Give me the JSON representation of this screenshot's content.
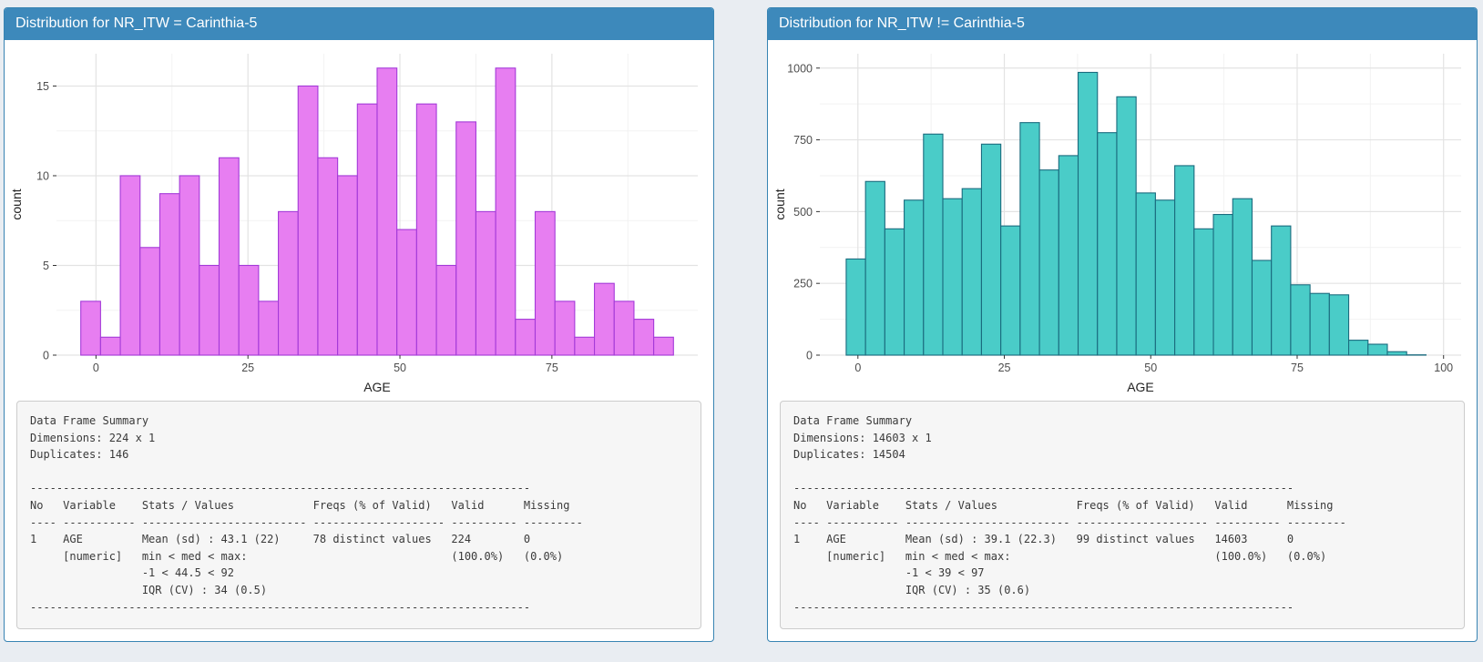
{
  "colors": {
    "page_bg": "#e9edf2",
    "panel_border": "#3884b3",
    "header_bg": "#3d89bb",
    "summary_bg": "#f6f6f6",
    "summary_border": "#cccccc",
    "left_bar_fill": "#e77ef1",
    "left_bar_stroke": "#a43ad8",
    "right_bar_fill": "#4accc8",
    "right_bar_stroke": "#1a6b7e"
  },
  "panels": [
    {
      "title": "Distribution for NR_ITW = Carinthia-5",
      "summary_text": "Data Frame Summary\nDimensions: 224 x 1\nDuplicates: 146\n\n----------------------------------------------------------------------------\nNo   Variable    Stats / Values            Freqs (% of Valid)   Valid      Missing\n---- ----------- ------------------------- -------------------- ---------- ---------\n1    AGE         Mean (sd) : 43.1 (22)     78 distinct values   224        0\n     [numeric]   min < med < max:                               (100.0%)   (0.0%)\n                 -1 < 44.5 < 92\n                 IQR (CV) : 34 (0.5)\n----------------------------------------------------------------------------"
    },
    {
      "title": "Distribution for NR_ITW != Carinthia-5",
      "summary_text": "Data Frame Summary\nDimensions: 14603 x 1\nDuplicates: 14504\n\n----------------------------------------------------------------------------\nNo   Variable    Stats / Values            Freqs (% of Valid)   Valid      Missing\n---- ----------- ------------------------- -------------------- ---------- ---------\n1    AGE         Mean (sd) : 39.1 (22.3)   99 distinct values   14603      0\n     [numeric]   min < med < max:                               (100.0%)   (0.0%)\n                 -1 < 39 < 97\n                 IQR (CV) : 35 (0.6)\n----------------------------------------------------------------------------"
    }
  ],
  "chart_data": [
    {
      "type": "bar",
      "subtype": "histogram",
      "title": "Distribution for NR_ITW = Carinthia-5",
      "xlabel": "AGE",
      "ylabel": "count",
      "bin_start": -2.5,
      "bin_width": 3.25,
      "values": [
        3,
        1,
        10,
        6,
        9,
        10,
        5,
        11,
        5,
        3,
        8,
        15,
        11,
        10,
        14,
        16,
        7,
        14,
        5,
        13,
        8,
        16,
        2,
        8,
        3,
        1,
        4,
        3,
        2,
        1
      ],
      "total_count": 224,
      "xlim": [
        -6.5,
        99
      ],
      "ylim": [
        0,
        16.8
      ],
      "x_ticks": [
        0,
        25,
        50,
        75
      ],
      "y_ticks": [
        0,
        5,
        10,
        15
      ],
      "grid": true,
      "bar_fill": "#e77ef1",
      "bar_stroke": "#a43ad8"
    },
    {
      "type": "bar",
      "subtype": "histogram",
      "title": "Distribution for NR_ITW != Carinthia-5",
      "xlabel": "AGE",
      "ylabel": "count",
      "bin_start": -2.0,
      "bin_width": 3.3,
      "values": [
        335,
        605,
        440,
        540,
        770,
        545,
        580,
        735,
        450,
        810,
        645,
        695,
        985,
        775,
        900,
        565,
        540,
        660,
        440,
        490,
        545,
        330,
        450,
        245,
        215,
        210,
        52,
        38,
        12,
        1
      ],
      "total_count": 14603,
      "xlim": [
        -6.5,
        103
      ],
      "ylim": [
        0,
        1050
      ],
      "x_ticks": [
        0,
        25,
        50,
        75,
        100
      ],
      "y_ticks": [
        0,
        250,
        500,
        750,
        1000
      ],
      "grid": true,
      "bar_fill": "#4accc8",
      "bar_stroke": "#1a6b7e"
    }
  ]
}
